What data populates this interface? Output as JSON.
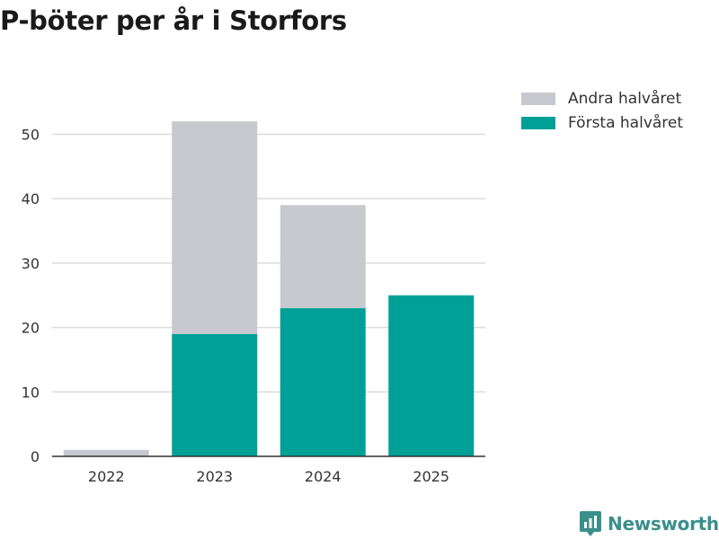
{
  "chart_data": {
    "type": "bar",
    "stacked": true,
    "title": "P-böter per år i Storfors",
    "categories": [
      "2022",
      "2023",
      "2024",
      "2025"
    ],
    "series": [
      {
        "name": "Första halvåret",
        "values": [
          0,
          19,
          23,
          25
        ],
        "color": "#00a096"
      },
      {
        "name": "Andra halvåret",
        "values": [
          1,
          33,
          16,
          0
        ],
        "color": "#c8c8cf"
      }
    ],
    "ylim": [
      0,
      55
    ],
    "yticks": [
      0,
      10,
      20,
      30,
      40,
      50
    ],
    "xlabel": "",
    "ylabel": "",
    "grid": true,
    "legend_position": "top-right"
  },
  "legend": {
    "items": [
      {
        "label": "Andra halvåret",
        "color": "#c8c8cf"
      },
      {
        "label": "Första halvåret",
        "color": "#00a096"
      }
    ]
  },
  "brand": {
    "name": "Newsworthy",
    "color": "#3a8f8c"
  }
}
